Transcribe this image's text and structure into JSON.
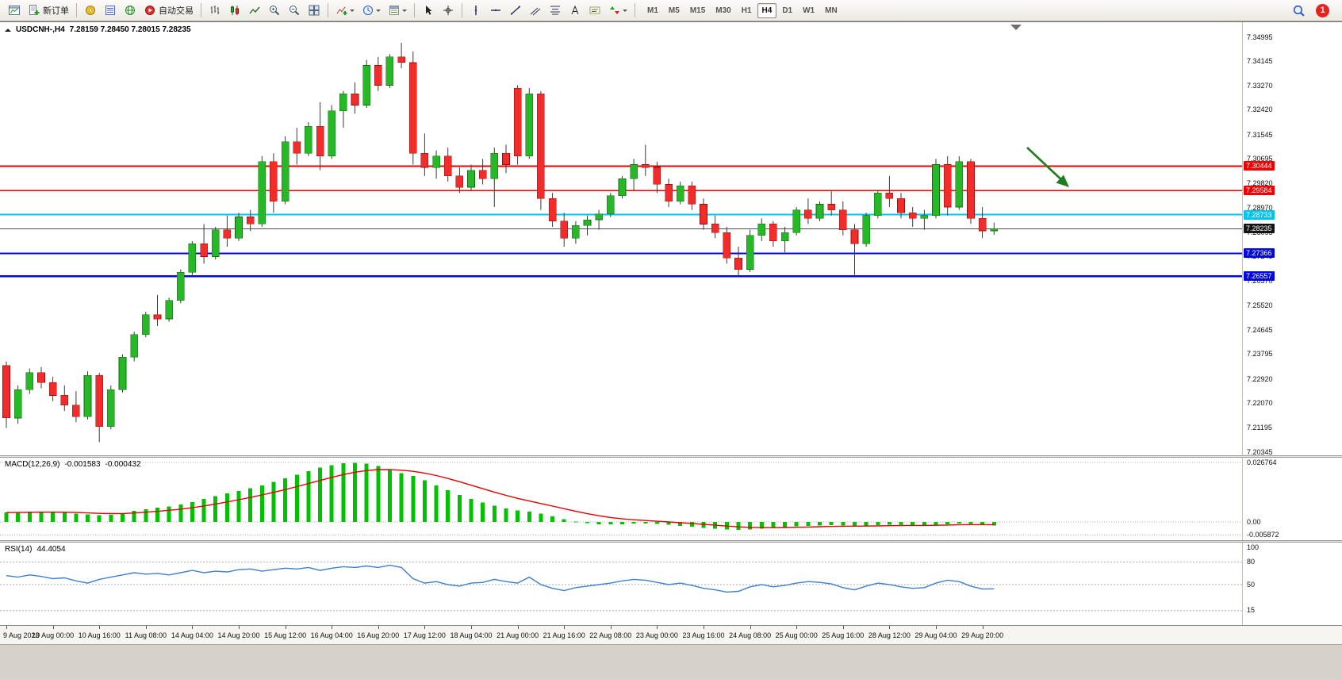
{
  "toolbar": {
    "new_order_label": "新订单",
    "autotrade_label": "自动交易",
    "timeframes": [
      "M1",
      "M5",
      "M15",
      "M30",
      "H1",
      "H4",
      "D1",
      "W1",
      "MN"
    ],
    "active_timeframe": "H4",
    "badge_count": "1",
    "buttons": [
      "new-chart",
      "new-order",
      "profiles",
      "market-watch",
      "community",
      "autotrading",
      "bar-chart",
      "candlestick-chart",
      "line-chart",
      "zoom-in",
      "zoom-out",
      "tile-windows",
      "indicators",
      "periods",
      "templates",
      "cursor",
      "crosshair",
      "vertical-line",
      "horizontal-line",
      "trendline",
      "equidistant-channel",
      "fibonacci",
      "text",
      "text-label",
      "arrows",
      "search",
      "notifications"
    ]
  },
  "chart": {
    "symbol_label": "USDCNH-,H4",
    "ohlc_values": "7.28159 7.28450 7.28015 7.28235",
    "price_axis_labels": [
      "7.34995",
      "7.34145",
      "7.33270",
      "7.32420",
      "7.31545",
      "7.30695",
      "7.29820",
      "7.28970",
      "7.28095",
      "7.27245",
      "7.26370",
      "7.25520",
      "7.24645",
      "7.23795",
      "7.22920",
      "7.22070",
      "7.21195",
      "7.20345"
    ],
    "hlines": [
      {
        "price": 7.30444,
        "label": "7.30444",
        "color": "#f00000",
        "thickness": 1.6
      },
      {
        "price": 7.29584,
        "label": "7.29584",
        "color": "#f00000",
        "thickness": 1.6
      },
      {
        "price": 7.28733,
        "label": "7.28733",
        "color": "#00c4ee",
        "thickness": 2.2
      },
      {
        "price": 7.27366,
        "label": "7.27366",
        "color": "#0008dd",
        "thickness": 2.2
      },
      {
        "price": 7.26557,
        "label": "7.26557",
        "color": "#0008dd",
        "thickness": 2.2
      }
    ],
    "current_price": {
      "price": 7.28235,
      "label": "7.28235",
      "color": "#4d4d4d",
      "tag_bg": "#141414"
    },
    "arrow_annotation": {
      "color": "#1e7d1e"
    },
    "time_axis_labels": [
      "9 Aug 2023",
      "10 Aug 00:00",
      "10 Aug 16:00",
      "11 Aug 08:00",
      "14 Aug 04:00",
      "14 Aug 20:00",
      "15 Aug 12:00",
      "16 Aug 04:00",
      "16 Aug 20:00",
      "17 Aug 12:00",
      "18 Aug 04:00",
      "21 Aug 00:00",
      "21 Aug 16:00",
      "22 Aug 08:00",
      "23 Aug 00:00",
      "23 Aug 16:00",
      "24 Aug 08:00",
      "25 Aug 00:00",
      "25 Aug 16:00",
      "28 Aug 12:00",
      "29 Aug 04:00",
      "29 Aug 20:00"
    ]
  },
  "macd": {
    "label": "MACD(12,26,9)",
    "value_main": "-0.001583",
    "value_signal": "-0.000432",
    "axis_labels": [
      "0.026764",
      "0.00",
      "-0.005872"
    ]
  },
  "rsi": {
    "label": "RSI(14)",
    "value": "44.4054",
    "axis_labels": [
      "100",
      "80",
      "50",
      "15"
    ],
    "levels": [
      80,
      50,
      15
    ]
  },
  "chart_data": {
    "type": "candlestick",
    "symbol": "USDCNH",
    "timeframe": "H4",
    "price_range": [
      7.20345,
      7.34995
    ],
    "label_every_n_bars": 4,
    "candles": [
      [
        7.234,
        7.2355,
        7.212,
        7.2155
      ],
      [
        7.2155,
        7.227,
        7.2135,
        7.2255
      ],
      [
        7.2255,
        7.233,
        7.224,
        7.2315
      ],
      [
        7.2315,
        7.2335,
        7.226,
        7.228
      ],
      [
        7.228,
        7.23,
        7.2215,
        7.2235
      ],
      [
        7.2235,
        7.227,
        7.218,
        7.22
      ],
      [
        7.22,
        7.225,
        7.214,
        7.216
      ],
      [
        7.216,
        7.232,
        7.215,
        7.2305
      ],
      [
        7.2305,
        7.2315,
        7.207,
        7.2125
      ],
      [
        7.2125,
        7.227,
        7.2115,
        7.2255
      ],
      [
        7.2255,
        7.238,
        7.2245,
        7.237
      ],
      [
        7.237,
        7.246,
        7.2355,
        7.245
      ],
      [
        7.245,
        7.253,
        7.244,
        7.252
      ],
      [
        7.252,
        7.259,
        7.248,
        7.2505
      ],
      [
        7.2505,
        7.258,
        7.2495,
        7.257
      ],
      [
        7.257,
        7.268,
        7.256,
        7.267
      ],
      [
        7.267,
        7.278,
        7.266,
        7.277
      ],
      [
        7.277,
        7.284,
        7.27,
        7.2725
      ],
      [
        7.2725,
        7.283,
        7.2715,
        7.282
      ],
      [
        7.282,
        7.287,
        7.276,
        7.279
      ],
      [
        7.279,
        7.288,
        7.278,
        7.2865
      ],
      [
        7.2865,
        7.289,
        7.2815,
        7.284
      ],
      [
        7.284,
        7.308,
        7.283,
        7.306
      ],
      [
        7.306,
        7.309,
        7.288,
        7.292
      ],
      [
        7.292,
        7.315,
        7.291,
        7.313
      ],
      [
        7.313,
        7.318,
        7.305,
        7.309
      ],
      [
        7.309,
        7.32,
        7.308,
        7.3185
      ],
      [
        7.3185,
        7.327,
        7.303,
        7.308
      ],
      [
        7.308,
        7.326,
        7.307,
        7.324
      ],
      [
        7.324,
        7.331,
        7.318,
        7.33
      ],
      [
        7.33,
        7.334,
        7.323,
        7.326
      ],
      [
        7.326,
        7.342,
        7.325,
        7.34
      ],
      [
        7.34,
        7.343,
        7.331,
        7.333
      ],
      [
        7.333,
        7.344,
        7.332,
        7.343
      ],
      [
        7.343,
        7.348,
        7.339,
        7.341
      ],
      [
        7.341,
        7.345,
        7.305,
        7.309
      ],
      [
        7.309,
        7.316,
        7.301,
        7.304
      ],
      [
        7.304,
        7.31,
        7.3,
        7.308
      ],
      [
        7.308,
        7.311,
        7.299,
        7.301
      ],
      [
        7.301,
        7.304,
        7.295,
        7.297
      ],
      [
        7.297,
        7.305,
        7.296,
        7.303
      ],
      [
        7.303,
        7.307,
        7.298,
        7.3
      ],
      [
        7.3,
        7.311,
        7.29,
        7.309
      ],
      [
        7.309,
        7.312,
        7.302,
        7.305
      ],
      [
        7.332,
        7.333,
        7.305,
        7.308
      ],
      [
        7.308,
        7.332,
        7.307,
        7.33
      ],
      [
        7.33,
        7.331,
        7.289,
        7.293
      ],
      [
        7.293,
        7.295,
        7.283,
        7.285
      ],
      [
        7.285,
        7.288,
        7.276,
        7.279
      ],
      [
        7.279,
        7.285,
        7.277,
        7.2835
      ],
      [
        7.2835,
        7.287,
        7.28,
        7.2855
      ],
      [
        7.2855,
        7.289,
        7.282,
        7.2875
      ],
      [
        7.2875,
        7.295,
        7.2865,
        7.294
      ],
      [
        7.294,
        7.301,
        7.293,
        7.3
      ],
      [
        7.3,
        7.307,
        7.296,
        7.305
      ],
      [
        7.305,
        7.312,
        7.301,
        7.304
      ],
      [
        7.304,
        7.306,
        7.295,
        7.298
      ],
      [
        7.298,
        7.3,
        7.29,
        7.292
      ],
      [
        7.292,
        7.299,
        7.291,
        7.2975
      ],
      [
        7.2975,
        7.299,
        7.289,
        7.291
      ],
      [
        7.291,
        7.293,
        7.282,
        7.284
      ],
      [
        7.284,
        7.287,
        7.279,
        7.281
      ],
      [
        7.281,
        7.283,
        7.27,
        7.272
      ],
      [
        7.272,
        7.276,
        7.2655,
        7.268
      ],
      [
        7.268,
        7.282,
        7.267,
        7.28
      ],
      [
        7.28,
        7.286,
        7.278,
        7.284
      ],
      [
        7.284,
        7.285,
        7.276,
        7.278
      ],
      [
        7.278,
        7.283,
        7.274,
        7.281
      ],
      [
        7.281,
        7.29,
        7.28,
        7.289
      ],
      [
        7.289,
        7.293,
        7.284,
        7.286
      ],
      [
        7.286,
        7.292,
        7.285,
        7.291
      ],
      [
        7.291,
        7.296,
        7.287,
        7.289
      ],
      [
        7.289,
        7.292,
        7.28,
        7.282
      ],
      [
        7.282,
        7.284,
        7.266,
        7.277
      ],
      [
        7.277,
        7.288,
        7.276,
        7.287
      ],
      [
        7.287,
        7.296,
        7.286,
        7.295
      ],
      [
        7.295,
        7.301,
        7.29,
        7.293
      ],
      [
        7.293,
        7.295,
        7.286,
        7.288
      ],
      [
        7.288,
        7.29,
        7.283,
        7.286
      ],
      [
        7.286,
        7.289,
        7.282,
        7.287
      ],
      [
        7.287,
        7.307,
        7.286,
        7.305
      ],
      [
        7.305,
        7.308,
        7.287,
        7.29
      ],
      [
        7.29,
        7.308,
        7.289,
        7.306
      ],
      [
        7.306,
        7.307,
        7.284,
        7.286
      ],
      [
        7.286,
        7.29,
        7.279,
        7.2816
      ],
      [
        7.28159,
        7.2845,
        7.28015,
        7.28235
      ]
    ],
    "macd_histogram": [
      0.0042,
      0.0044,
      0.0046,
      0.0047,
      0.0045,
      0.0042,
      0.0038,
      0.0034,
      0.003,
      0.0033,
      0.004,
      0.005,
      0.0058,
      0.0064,
      0.007,
      0.0078,
      0.009,
      0.0103,
      0.0116,
      0.0128,
      0.014,
      0.0152,
      0.0165,
      0.018,
      0.0196,
      0.0212,
      0.0228,
      0.0244,
      0.0256,
      0.0264,
      0.0266,
      0.0262,
      0.0252,
      0.0238,
      0.022,
      0.0208,
      0.0188,
      0.0165,
      0.0143,
      0.0122,
      0.0103,
      0.0087,
      0.0073,
      0.0061,
      0.0052,
      0.0047,
      0.0038,
      0.0025,
      0.0012,
      0.0002,
      -0.0006,
      -0.001,
      -0.0011,
      -0.001,
      -0.0008,
      -0.0007,
      -0.0009,
      -0.0013,
      -0.0017,
      -0.0021,
      -0.0026,
      -0.003,
      -0.0034,
      -0.0036,
      -0.0034,
      -0.003,
      -0.0026,
      -0.0023,
      -0.002,
      -0.0018,
      -0.0016,
      -0.0015,
      -0.0016,
      -0.0018,
      -0.0017,
      -0.0015,
      -0.0013,
      -0.0013,
      -0.0014,
      -0.0015,
      -0.0013,
      -0.001,
      -0.0008,
      -0.0009,
      -0.0012,
      -0.0016
    ],
    "rsi": [
      62,
      60,
      63,
      61,
      58,
      59,
      55,
      52,
      57,
      60,
      63,
      66,
      64,
      65,
      63,
      66,
      69,
      66,
      68,
      67,
      70,
      71,
      68,
      70,
      72,
      71,
      73,
      69,
      72,
      74,
      73,
      75,
      73,
      76,
      73,
      58,
      52,
      54,
      50,
      48,
      52,
      53,
      57,
      54,
      52,
      60,
      50,
      45,
      42,
      46,
      48,
      50,
      52,
      55,
      57,
      56,
      53,
      50,
      52,
      49,
      45,
      43,
      40,
      41,
      47,
      50,
      47,
      49,
      52,
      54,
      53,
      51,
      46,
      43,
      48,
      52,
      50,
      47,
      45,
      46,
      52,
      56,
      54,
      48,
      44,
      44.4
    ]
  }
}
